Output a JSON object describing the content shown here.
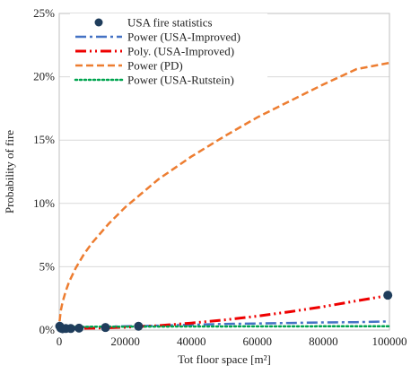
{
  "chart_data": {
    "type": "scatter",
    "xlabel": "Tot floor space [m²]",
    "ylabel": "Probability of fire",
    "xlim": [
      0,
      100000
    ],
    "ylim": [
      0,
      25
    ],
    "x_ticks": [
      0,
      20000,
      40000,
      60000,
      80000,
      100000
    ],
    "x_tick_labels": [
      "0",
      "20000",
      "40000",
      "60000",
      "80000",
      "100000"
    ],
    "y_ticks": [
      0,
      5,
      10,
      15,
      20,
      25
    ],
    "y_tick_labels": [
      "0%",
      "5%",
      "10%",
      "15%",
      "20%",
      "25%"
    ],
    "grid": "horizontal",
    "legend_position": "top-left",
    "series": [
      {
        "name": "USA fire statistics",
        "kind": "points",
        "color": "#1f3d5c",
        "x": [
          150,
          500,
          1000,
          2000,
          3500,
          6000,
          14000,
          24000,
          99500
        ],
        "y": [
          0.3,
          0.15,
          0.1,
          0.12,
          0.12,
          0.15,
          0.2,
          0.3,
          2.75
        ]
      },
      {
        "name": "Power (USA-Improved)",
        "kind": "line",
        "style": "dash-dot",
        "color": "#4472c4",
        "x": [
          0,
          5000,
          10000,
          20000,
          30000,
          40000,
          50000,
          60000,
          70000,
          80000,
          90000,
          100000
        ],
        "y": [
          0.05,
          0.2,
          0.25,
          0.3,
          0.35,
          0.42,
          0.48,
          0.52,
          0.56,
          0.6,
          0.62,
          0.68
        ]
      },
      {
        "name": "Poly. (USA-Improved)",
        "kind": "line",
        "style": "dash-dot-dot",
        "color": "#ee0000",
        "x": [
          0,
          5000,
          10000,
          20000,
          30000,
          40000,
          50000,
          60000,
          70000,
          80000,
          90000,
          100000
        ],
        "y": [
          0.12,
          0.13,
          0.15,
          0.22,
          0.35,
          0.55,
          0.8,
          1.1,
          1.45,
          1.85,
          2.3,
          2.75
        ]
      },
      {
        "name": "Power (PD)",
        "kind": "line",
        "style": "dash",
        "color": "#ed7d31",
        "x": [
          100,
          500,
          1000,
          2000,
          3000,
          5000,
          7500,
          10000,
          15000,
          20000,
          30000,
          40000,
          50000,
          60000,
          70000,
          80000,
          90000,
          100000
        ],
        "y": [
          0.7,
          1.55,
          2.2,
          3.1,
          3.8,
          4.9,
          6.0,
          6.9,
          8.4,
          9.7,
          11.9,
          13.7,
          15.3,
          16.8,
          18.1,
          19.4,
          20.6,
          21.1
        ]
      },
      {
        "name": "Power (USA-Rutstein)",
        "kind": "line",
        "style": "dot",
        "color": "#00a550",
        "x": [
          0,
          10000,
          20000,
          40000,
          60000,
          80000,
          100000
        ],
        "y": [
          0.25,
          0.26,
          0.27,
          0.28,
          0.29,
          0.3,
          0.3
        ]
      }
    ]
  }
}
